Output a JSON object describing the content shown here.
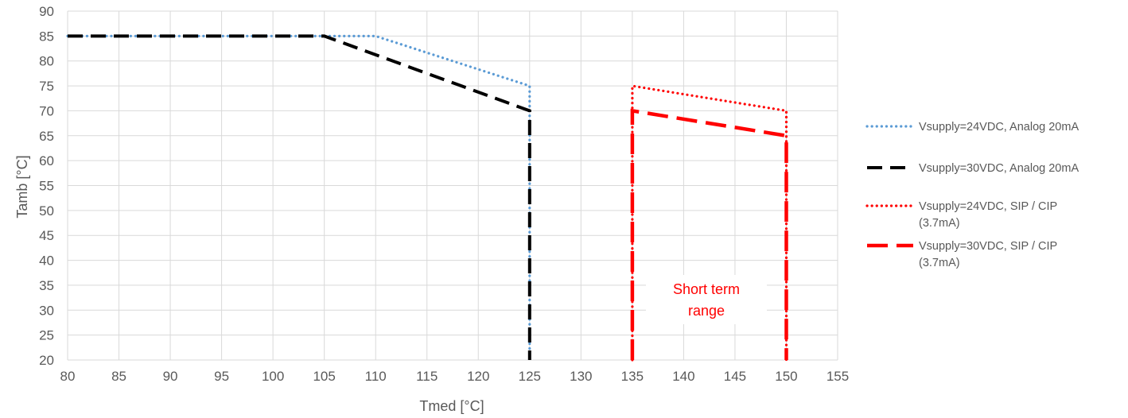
{
  "chart_data": {
    "type": "line",
    "title": "",
    "xlabel": "Tmed [°C]",
    "ylabel": "Tamb [°C]",
    "xlim": [
      80,
      155
    ],
    "ylim": [
      20,
      90
    ],
    "x_ticks": [
      80,
      85,
      90,
      95,
      100,
      105,
      110,
      115,
      120,
      125,
      130,
      135,
      140,
      145,
      150,
      155
    ],
    "y_ticks": [
      20,
      25,
      30,
      35,
      40,
      45,
      50,
      55,
      60,
      65,
      70,
      75,
      80,
      85,
      90
    ],
    "grid": true,
    "legend_position": "right",
    "annotation": {
      "lines": [
        "Short term",
        "range"
      ],
      "color": "#ff0000"
    },
    "series": [
      {
        "name": "Vsupply=24VDC, Analog 20mA",
        "color": "#5b9bd5",
        "style": "dotted",
        "points": [
          [
            80,
            85
          ],
          [
            105,
            85
          ],
          [
            110,
            85
          ],
          [
            125,
            75
          ],
          [
            125,
            20
          ]
        ]
      },
      {
        "name": "Vsupply=30VDC, Analog 20mA",
        "color": "#000000",
        "style": "dashed",
        "points": [
          [
            80,
            85
          ],
          [
            105,
            85
          ],
          [
            125,
            70
          ],
          [
            125,
            20
          ]
        ]
      },
      {
        "name": "Vsupply=24VDC, SIP /  CIP (3.7mA)",
        "legend_lines": [
          "Vsupply=24VDC, SIP /  CIP",
          "(3.7mA)"
        ],
        "color": "#ff0000",
        "style": "dotted",
        "points": [
          [
            135,
            20
          ],
          [
            135,
            75
          ],
          [
            150,
            70
          ],
          [
            150,
            20
          ]
        ]
      },
      {
        "name": "Vsupply=30VDC, SIP /  CIP (3.7mA)",
        "legend_lines": [
          "Vsupply=30VDC, SIP /  CIP",
          "(3.7mA)"
        ],
        "color": "#ff0000",
        "style": "dashed",
        "points": [
          [
            135,
            20
          ],
          [
            135,
            70
          ],
          [
            150,
            65
          ],
          [
            150,
            20
          ]
        ]
      }
    ]
  }
}
